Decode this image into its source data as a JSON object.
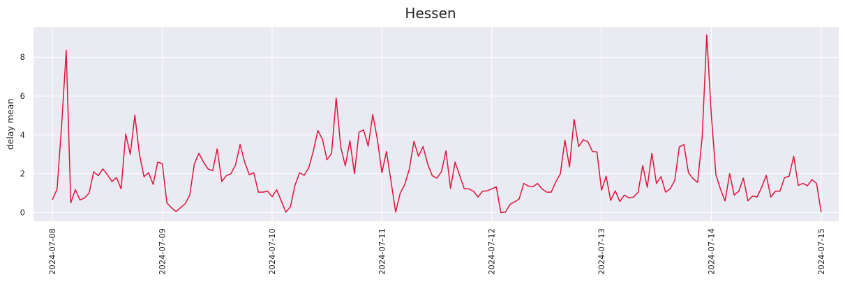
{
  "chart_data": {
    "type": "line",
    "title": "Hessen",
    "xlabel": "",
    "ylabel": "delay mean",
    "x_ticks": [
      "2024-07-08",
      "2024-07-09",
      "2024-07-10",
      "2024-07-11",
      "2024-07-12",
      "2024-07-13",
      "2024-07-14",
      "2024-07-15"
    ],
    "y_ticks": [
      0,
      2,
      4,
      6,
      8
    ],
    "ylim": [
      -0.45,
      9.55
    ],
    "xlim_days": [
      -0.173,
      7.16
    ],
    "grid": true,
    "background": "#eaeaf2",
    "line_color": "#dc143c",
    "series": [
      {
        "name": "",
        "x_start": "2024-07-08 00:00",
        "x_step_hours": 1,
        "values": [
          0.68,
          1.2,
          4.5,
          8.35,
          0.5,
          1.18,
          0.65,
          0.75,
          1.0,
          2.1,
          1.9,
          2.25,
          1.95,
          1.6,
          1.8,
          1.22,
          4.05,
          3.0,
          5.02,
          3.0,
          1.85,
          2.05,
          1.45,
          2.6,
          2.52,
          0.5,
          0.25,
          0.05,
          0.25,
          0.45,
          0.9,
          2.5,
          3.05,
          2.6,
          2.25,
          2.15,
          3.28,
          1.6,
          1.9,
          2.0,
          2.45,
          3.5,
          2.6,
          1.95,
          2.05,
          1.05,
          1.05,
          1.1,
          0.82,
          1.17,
          0.6,
          0.02,
          0.3,
          1.4,
          2.05,
          1.92,
          2.3,
          3.15,
          4.22,
          3.78,
          2.72,
          3.05,
          5.9,
          3.38,
          2.4,
          3.7,
          2.0,
          4.15,
          4.25,
          3.42,
          5.05,
          3.78,
          2.05,
          3.15,
          1.6,
          0.02,
          1.0,
          1.45,
          2.25,
          3.67,
          2.9,
          3.4,
          2.5,
          1.9,
          1.77,
          2.1,
          3.18,
          1.24,
          2.6,
          1.9,
          1.22,
          1.22,
          1.1,
          0.8,
          1.1,
          1.12,
          1.22,
          1.32,
          0.0,
          0.02,
          0.42,
          0.55,
          0.7,
          1.5,
          1.37,
          1.33,
          1.5,
          1.22,
          1.05,
          1.05,
          1.57,
          2.0,
          3.73,
          2.35,
          4.8,
          3.4,
          3.75,
          3.65,
          3.15,
          3.12,
          1.15,
          1.87,
          0.62,
          1.12,
          0.57,
          0.9,
          0.75,
          0.8,
          1.05,
          2.42,
          1.3,
          3.05,
          1.5,
          1.85,
          1.05,
          1.22,
          1.65,
          3.38,
          3.5,
          2.05,
          1.75,
          1.55,
          3.9,
          9.15,
          5.0,
          1.95,
          1.2,
          0.6,
          2.0,
          0.9,
          1.1,
          1.77,
          0.6,
          0.85,
          0.8,
          1.3,
          1.92,
          0.8,
          1.1,
          1.1,
          1.8,
          1.87,
          2.9,
          1.4,
          1.5,
          1.38,
          1.7,
          1.5,
          0.03
        ]
      }
    ]
  }
}
